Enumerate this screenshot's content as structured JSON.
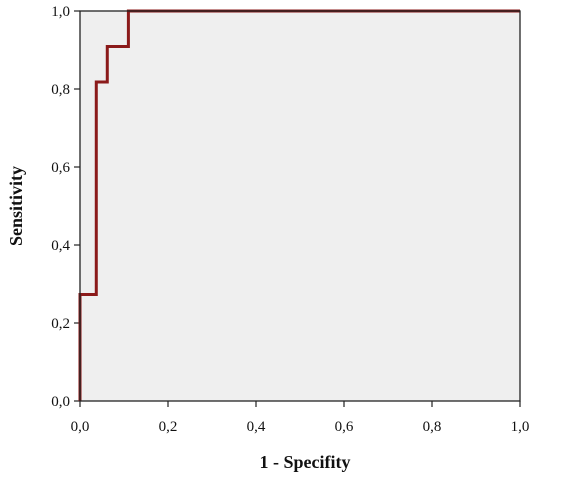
{
  "colors": {
    "plot_background": "#efefef",
    "frame": "#222222",
    "curve": "#8b1a1a",
    "grid": "#cccccc"
  },
  "chart_data": {
    "type": "line",
    "title": "",
    "xlabel": "1 - Specifity",
    "ylabel": "Sensitivity",
    "xlim": [
      0,
      1
    ],
    "ylim": [
      0,
      1
    ],
    "x_ticks": [
      0,
      0.2,
      0.4,
      0.6,
      0.8,
      1.0
    ],
    "y_ticks": [
      0,
      0.2,
      0.4,
      0.6,
      0.8,
      1.0
    ],
    "x_tick_labels": [
      "0,0",
      "0,2",
      "0,4",
      "0,6",
      "0,8",
      "1,0"
    ],
    "y_tick_labels": [
      "0,0",
      "0,2",
      "0,4",
      "0,6",
      "0,8",
      "1,0"
    ],
    "grid": false,
    "legend": "none",
    "series": [
      {
        "type": "step",
        "x": [
          0,
          0,
          0.037,
          0.037,
          0.062,
          0.062,
          0.11,
          0.11,
          1.0
        ],
        "y": [
          0,
          0.273,
          0.273,
          0.818,
          0.818,
          0.909,
          0.909,
          1.0,
          1.0
        ]
      }
    ]
  }
}
